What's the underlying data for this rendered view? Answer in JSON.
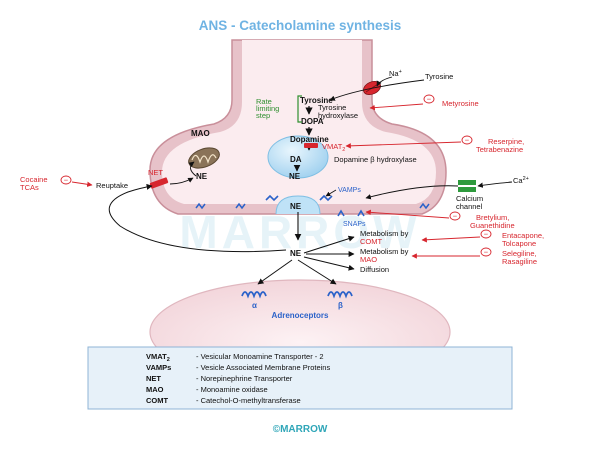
{
  "title": "ANS - Catecholamine synthesis",
  "ions": {
    "na": "Na",
    "na_sup": "+",
    "ca": "Ca",
    "ca_sup": "2+"
  },
  "pathway": {
    "tyrosine_ext": "Tyrosine",
    "tyrosine": "Tyrosine",
    "enzyme1_line1": "Tyrosine",
    "enzyme1_line2": "hydroxylase",
    "dopa": "DOPA",
    "dopamine": "Dopamine",
    "da": "DA",
    "ne_vesicle": "NE",
    "enzyme2": "Dopamine β hydroxylase",
    "ne_cyto": "NE",
    "ne_released": "NE",
    "ne_cleft": "NE"
  },
  "rate_limiting": [
    "Rate",
    "limiting",
    "step"
  ],
  "labels": {
    "mao": "MAO",
    "net_left": "NET",
    "vmat": "VMAT",
    "vmat_sub": "2",
    "reuptake": "Reuptake",
    "vamps": "VAMPs",
    "snaps": "SNAPs",
    "calcium_line1": "Calcium",
    "calcium_line2": "channel",
    "metab_comt_line1": "Metabolism by",
    "metab_comt_line2": "COMT",
    "metab_mao_line1": "Metabolism by",
    "metab_mao_line2": "MAO",
    "diffusion": "Diffusion",
    "alpha": "α",
    "beta": "β",
    "adrenoceptors": "Adrenoceptors"
  },
  "inhibitor_symbol": "−",
  "drugs": {
    "metyrosine": "Metyrosine",
    "reserpine_line1": "Reserpine,",
    "reserpine_line2": "Tetrabenazine",
    "cocaine_line1": "Cocaine",
    "cocaine_line2": "TCAs",
    "bretylium_line1": "Bretylium,",
    "bretylium_line2": "Guanethidine",
    "entacapone_line1": "Entacapone,",
    "entacapone_line2": "Tolcapone",
    "selegiline_line1": "Selegiline,",
    "selegiline_line2": "Rasagiline"
  },
  "legend": [
    {
      "key": "VMAT",
      "key_sub": "2",
      "value": "- Vesicular Monoamine Transporter - 2"
    },
    {
      "key": "VAMPs",
      "key_sub": "",
      "value": "- Vesicle Associated Membrane Proteins"
    },
    {
      "key": "NET",
      "key_sub": "",
      "value": "- Norepinephrine Transporter"
    },
    {
      "key": "MAO",
      "key_sub": "",
      "value": "- Monoamine oxidase"
    },
    {
      "key": "COMT",
      "key_sub": "",
      "value": "- Catechol-O-methyltransferase"
    }
  ],
  "watermark": "MARROW",
  "footer": "©MARROW",
  "colors": {
    "membrane": "#e7c2c9",
    "membrane_edge": "#c98f9a",
    "cytoplasm": "#fbecef",
    "vesicle": "#bfe2f7",
    "receptor_blue": "#2b62c9",
    "inhibit_red": "#d7262e",
    "legend_bg": "#e7f1f9",
    "legend_edge": "#8fb4d6"
  }
}
